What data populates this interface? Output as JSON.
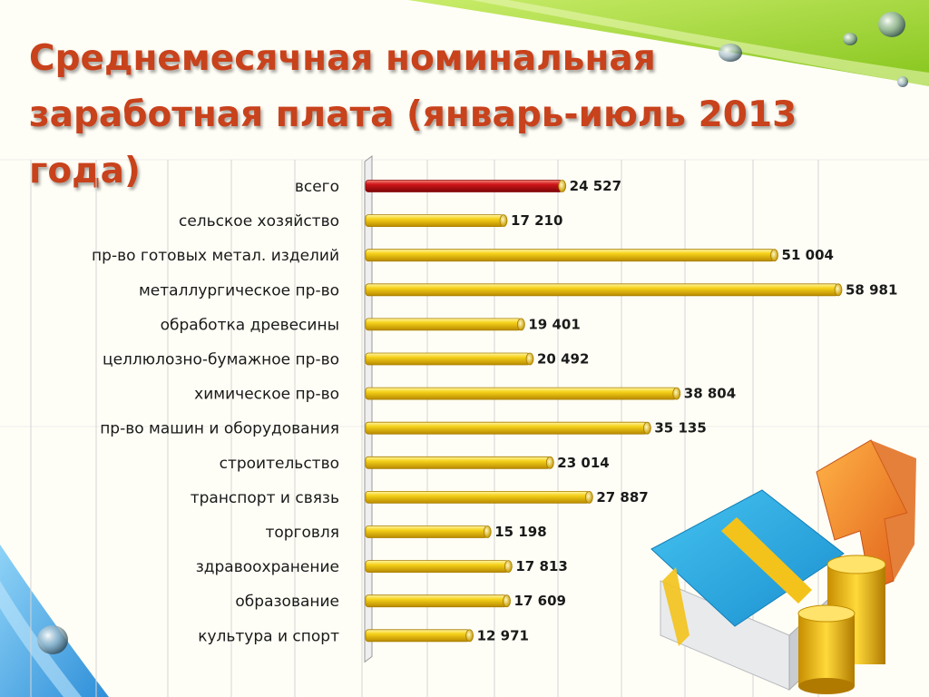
{
  "slide": {
    "title": "Среднемесячная номинальная\nзаработная плата (январь-июль 2013 года)"
  },
  "colors": {
    "title": "#c8421c",
    "bar_default": "#f2cd16",
    "bar_highlight": "#c8161a",
    "grid": "#c9c9c9",
    "accent_green": "#9bd229",
    "accent_blue": "#58b3ec"
  },
  "chart_data": {
    "type": "bar",
    "orientation": "horizontal",
    "categories": [
      "всего",
      "сельское хозяйство",
      "пр-во готовых метал. изделий",
      "металлургическое пр-во",
      "обработка древесины",
      "целлюлозно-бумажное пр-во",
      "химическое пр-во",
      "пр-во машин и оборудования",
      "строительство",
      "транспорт и связь",
      "торговля",
      "здравоохранение",
      "образование",
      "культура и спорт"
    ],
    "values": [
      24527,
      17210,
      51004,
      58981,
      19401,
      20492,
      38804,
      35135,
      23014,
      27887,
      15198,
      17813,
      17609,
      12971
    ],
    "value_labels": [
      "24 527",
      "17 210",
      "51 004",
      "58 981",
      "19 401",
      "20 492",
      "38 804",
      "35 135",
      "23 014",
      "27 887",
      "15 198",
      "17 813",
      "17 609",
      "12 971"
    ],
    "highlight_category": "всего",
    "xlim": [
      0,
      60000
    ],
    "grid": true,
    "legend": "none"
  },
  "decor": {
    "icons": [
      "money-stack-icon",
      "coin-stack-icon",
      "up-arrow-icon",
      "water-drop-icon"
    ]
  }
}
